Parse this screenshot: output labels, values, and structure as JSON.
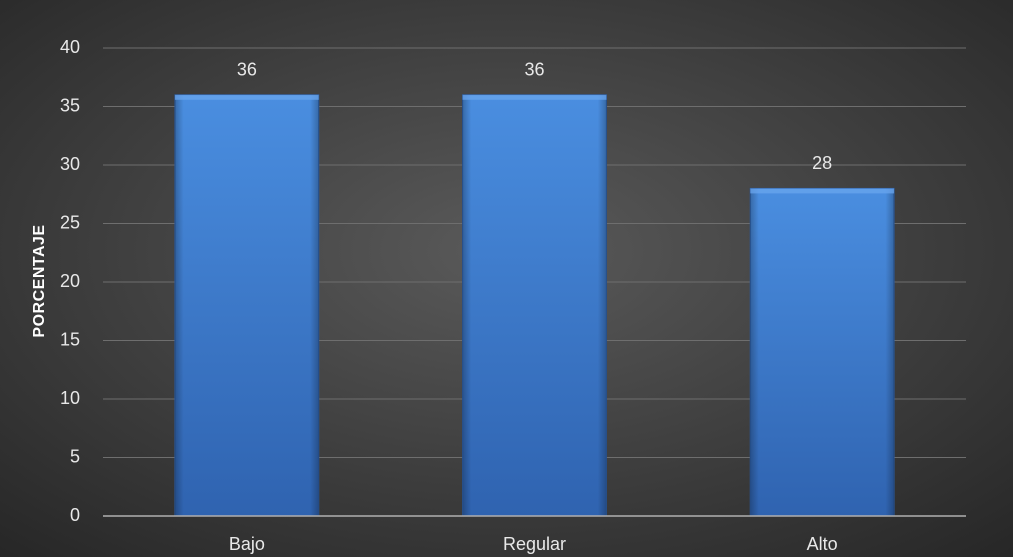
{
  "chart_data": {
    "type": "bar",
    "categories": [
      "Bajo",
      "Regular",
      "Alto"
    ],
    "values": [
      36,
      36,
      28
    ],
    "data_labels": [
      "36",
      "36",
      "28"
    ],
    "title": "",
    "xlabel": "",
    "ylabel": "PORCENTAJE",
    "ylim": [
      0,
      40
    ],
    "yticks": [
      0,
      5,
      10,
      15,
      20,
      25,
      30,
      35,
      40
    ],
    "grid": true,
    "legend": "none"
  },
  "colors": {
    "background_center": "#5a5a5a",
    "background_edge": "#262626",
    "bar_top": "#4a8ee0",
    "bar_bottom": "#2f63b0",
    "gridline": "#6e6e6e",
    "axis_line": "#b0b0b0",
    "text": "#e8e8e8"
  }
}
